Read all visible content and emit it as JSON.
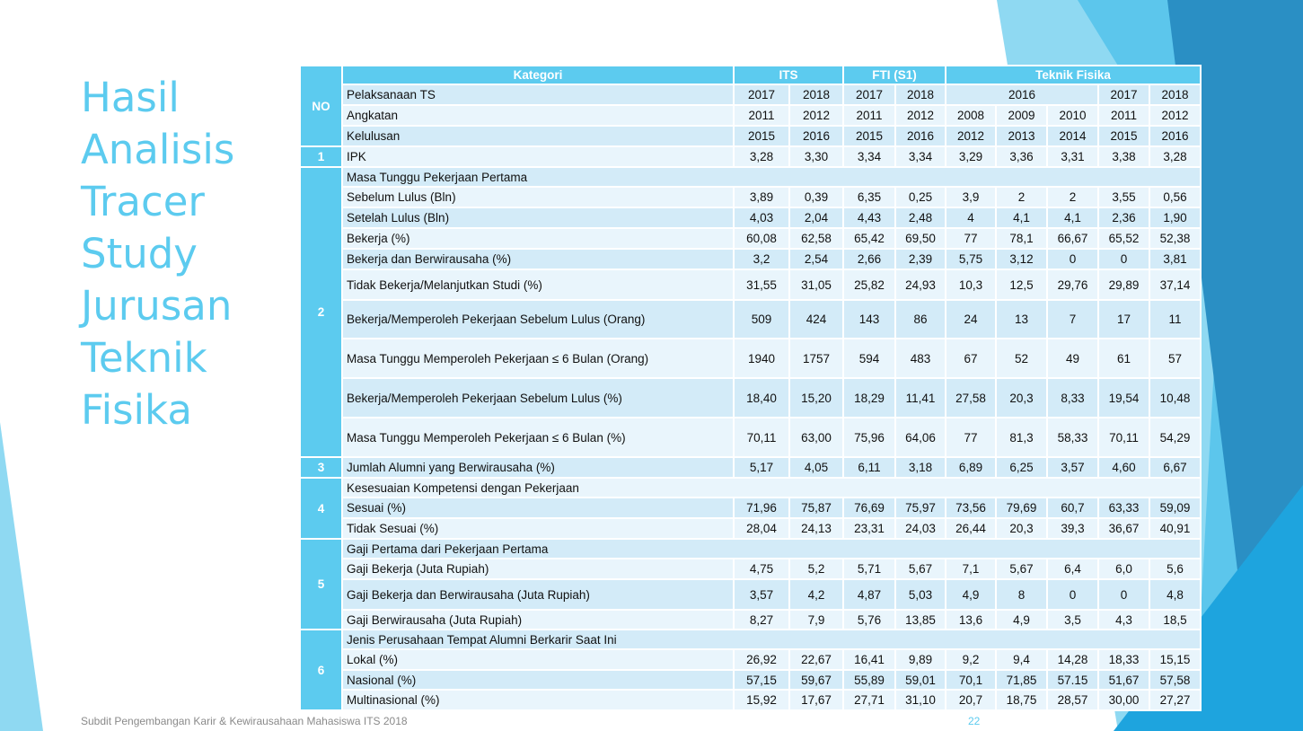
{
  "slide": {
    "title_lines": [
      "Hasil",
      "Analisis",
      "Tracer",
      "Study",
      "Jurusan",
      "Teknik",
      "Fisika"
    ],
    "footer": "Subdit Pengembangan Karir & Kewirausahaan Mahasiswa ITS 2018",
    "page_number": "22"
  },
  "colors": {
    "accent": "#5ccbef",
    "row_dark": "#d3ebf8",
    "row_light": "#e9f5fc"
  },
  "table": {
    "header": {
      "no": "NO",
      "kategori": "Kategori",
      "its": "ITS",
      "fti": "FTI (S1)",
      "tf": "Teknik Fisika"
    },
    "pelaksanaan": {
      "label": "Pelaksanaan TS",
      "its": [
        "2017",
        "2018"
      ],
      "fti": [
        "2017",
        "2018"
      ],
      "tf_merged": "2016",
      "tf": [
        "2017",
        "2018"
      ]
    },
    "angkatan": {
      "label": "Angkatan",
      "values": [
        "2011",
        "2012",
        "2011",
        "2012",
        "2008",
        "2009",
        "2010",
        "2011",
        "2012"
      ]
    },
    "kelulusan": {
      "label": "Kelulusan",
      "values": [
        "2015",
        "2016",
        "2015",
        "2016",
        "2012",
        "2013",
        "2014",
        "2015",
        "2016"
      ]
    },
    "groups": [
      {
        "no": "1",
        "rows": [
          {
            "label": "IPK",
            "values": [
              "3,28",
              "3,30",
              "3,34",
              "3,34",
              "3,29",
              "3,36",
              "3,31",
              "3,38",
              "3,28"
            ]
          }
        ]
      },
      {
        "no": "2",
        "rows": [
          {
            "label": "Masa Tunggu Pekerjaan Pertama"
          },
          {
            "label": "Sebelum Lulus (Bln)",
            "values": [
              "3,89",
              "0,39",
              "6,35",
              "0,25",
              "3,9",
              "2",
              "2",
              "3,55",
              "0,56"
            ]
          },
          {
            "label": "Setelah Lulus (Bln)",
            "values": [
              "4,03",
              "2,04",
              "4,43",
              "2,48",
              "4",
              "4,1",
              "4,1",
              "2,36",
              "1,90"
            ]
          },
          {
            "label": "Bekerja (%)",
            "values": [
              "60,08",
              "62,58",
              "65,42",
              "69,50",
              "77",
              "78,1",
              "66,67",
              "65,52",
              "52,38"
            ]
          },
          {
            "label": "Bekerja dan Berwirausaha (%)",
            "values": [
              "3,2",
              "2,54",
              "2,66",
              "2,39",
              "5,75",
              "3,12",
              "0",
              "0",
              "3,81"
            ]
          },
          {
            "label": "Tidak Bekerja/Melanjutkan Studi (%)",
            "values": [
              "31,55",
              "31,05",
              "25,82",
              "24,93",
              "10,3",
              "12,5",
              "29,76",
              "29,89",
              "37,14"
            ]
          },
          {
            "label": "Bekerja/Memperoleh Pekerjaan Sebelum Lulus (Orang)",
            "values": [
              "509",
              "424",
              "143",
              "86",
              "24",
              "13",
              "7",
              "17",
              "11"
            ]
          },
          {
            "label": "Masa Tunggu Memperoleh Pekerjaan ≤ 6 Bulan (Orang)",
            "values": [
              "1940",
              "1757",
              "594",
              "483",
              "67",
              "52",
              "49",
              "61",
              "57"
            ]
          },
          {
            "label": "Bekerja/Memperoleh Pekerjaan Sebelum Lulus (%)",
            "values": [
              "18,40",
              "15,20",
              "18,29",
              "11,41",
              "27,58",
              "20,3",
              "8,33",
              "19,54",
              "10,48"
            ]
          },
          {
            "label": "Masa Tunggu Memperoleh Pekerjaan ≤ 6 Bulan (%)",
            "values": [
              "70,11",
              "63,00",
              "75,96",
              "64,06",
              "77",
              "81,3",
              "58,33",
              "70,11",
              "54,29"
            ]
          }
        ]
      },
      {
        "no": "3",
        "rows": [
          {
            "label": "Jumlah Alumni yang Berwirausaha (%)",
            "values": [
              "5,17",
              "4,05",
              "6,11",
              "3,18",
              "6,89",
              "6,25",
              "3,57",
              "4,60",
              "6,67"
            ]
          }
        ]
      },
      {
        "no": "4",
        "rows": [
          {
            "label": "Kesesuaian Kompetensi dengan Pekerjaan"
          },
          {
            "label": "Sesuai (%)",
            "values": [
              "71,96",
              "75,87",
              "76,69",
              "75,97",
              "73,56",
              "79,69",
              "60,7",
              "63,33",
              "59,09"
            ]
          },
          {
            "label": "Tidak Sesuai (%)",
            "values": [
              "28,04",
              "24,13",
              "23,31",
              "24,03",
              "26,44",
              "20,3",
              "39,3",
              "36,67",
              "40,91"
            ]
          }
        ]
      },
      {
        "no": "5",
        "rows": [
          {
            "label": "Gaji Pertama dari Pekerjaan Pertama"
          },
          {
            "label": "Gaji Bekerja (Juta Rupiah)",
            "values": [
              "4,75",
              "5,2",
              "5,71",
              "5,67",
              "7,1",
              "5,67",
              "6,4",
              "6,0",
              "5,6"
            ]
          },
          {
            "label": "Gaji Bekerja dan Berwirausaha (Juta Rupiah)",
            "values": [
              "3,57",
              "4,2",
              "4,87",
              "5,03",
              "4,9",
              "8",
              "0",
              "0",
              "4,8"
            ]
          },
          {
            "label": "Gaji Berwirausaha (Juta Rupiah)",
            "values": [
              "8,27",
              "7,9",
              "5,76",
              "13,85",
              "13,6",
              "4,9",
              "3,5",
              "4,3",
              "18,5"
            ]
          }
        ]
      },
      {
        "no": "6",
        "rows": [
          {
            "label": "Jenis Perusahaan Tempat Alumni Berkarir Saat Ini"
          },
          {
            "label": "Lokal (%)",
            "values": [
              "26,92",
              "22,67",
              "16,41",
              "9,89",
              "9,2",
              "9,4",
              "14,28",
              "18,33",
              "15,15"
            ]
          },
          {
            "label": "Nasional (%)",
            "values": [
              "57,15",
              "59,67",
              "55,89",
              "59,01",
              "70,1",
              "71,85",
              "57.15",
              "51,67",
              "57,58"
            ]
          },
          {
            "label": "Multinasional (%)",
            "values": [
              "15,92",
              "17,67",
              "27,71",
              "31,10",
              "20,7",
              "18,75",
              "28,57",
              "30,00",
              "27,27"
            ]
          }
        ]
      }
    ]
  }
}
